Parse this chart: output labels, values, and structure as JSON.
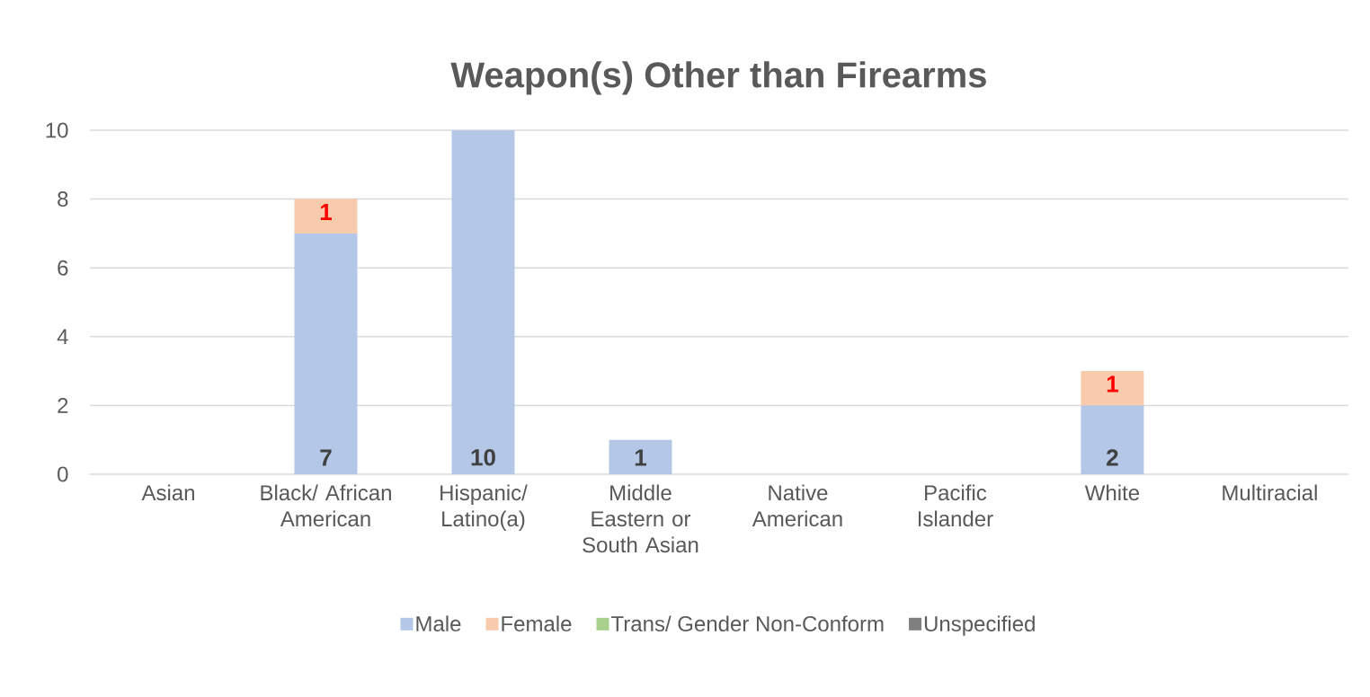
{
  "chart_data": {
    "type": "bar",
    "stacked": true,
    "title": "Weapon(s) Other than Firearms",
    "categories": [
      "Asian",
      "Black/ African American",
      "Hispanic/ Latino(a)",
      "Middle Eastern or South Asian",
      "Native American",
      "Pacific Islander",
      "White",
      "Multiracial"
    ],
    "series": [
      {
        "name": "Male",
        "color": "#b4c7e7",
        "values": [
          0,
          7,
          10,
          1,
          0,
          0,
          2,
          0
        ],
        "value_labels": [
          null,
          "7",
          "10",
          "1",
          null,
          null,
          "2",
          null
        ]
      },
      {
        "name": "Female",
        "color": "#f8cbad",
        "values": [
          0,
          1,
          0,
          0,
          0,
          0,
          1,
          0
        ],
        "value_labels": [
          null,
          "1",
          null,
          null,
          null,
          null,
          "1",
          null
        ]
      },
      {
        "name": "Trans/ Gender Non-Conform",
        "color": "#a9d18e",
        "values": [
          0,
          0,
          0,
          0,
          0,
          0,
          0,
          0
        ]
      },
      {
        "name": "Unspecified",
        "color": "#7f7f7f",
        "values": [
          0,
          0,
          0,
          0,
          0,
          0,
          0,
          0
        ]
      }
    ],
    "ylim": [
      0,
      10
    ],
    "yticks": [
      0,
      2,
      4,
      6,
      8,
      10
    ],
    "grid": "y",
    "legend": "bottom"
  }
}
